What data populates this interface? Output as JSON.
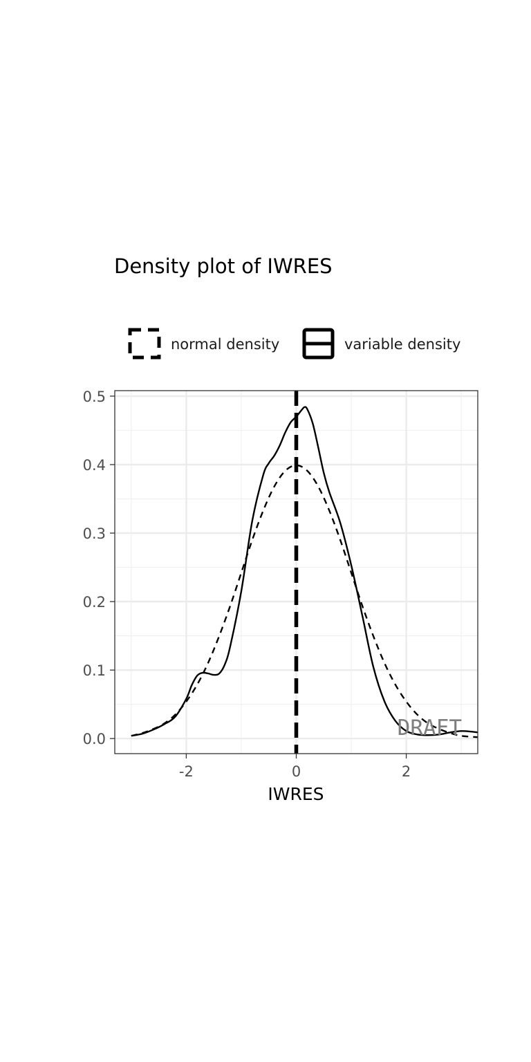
{
  "chart_data": {
    "type": "line",
    "title": "Density plot of IWRES",
    "xlabel": "IWRES",
    "ylabel": "",
    "xlim": [
      -3.3,
      3.3
    ],
    "ylim": [
      -0.022,
      0.508
    ],
    "x_ticks": [
      -2,
      0,
      2
    ],
    "x_tick_labels": [
      "-2",
      "0",
      "2"
    ],
    "y_ticks": [
      0.0,
      0.1,
      0.2,
      0.3,
      0.4,
      0.5
    ],
    "y_tick_labels": [
      "0.0",
      "0.1",
      "0.2",
      "0.3",
      "0.4",
      "0.5"
    ],
    "grid": true,
    "legend_position": "top",
    "legend": [
      {
        "label": "normal density",
        "linetype": "dashed"
      },
      {
        "label": "variable density",
        "linetype": "solid"
      }
    ],
    "reference_line": {
      "x": 0,
      "linetype": "dashed"
    },
    "watermark": "DRAFT",
    "series": [
      {
        "name": "normal density",
        "linetype": "dashed",
        "x": [
          -3.0,
          -2.8,
          -2.6,
          -2.4,
          -2.2,
          -2.0,
          -1.8,
          -1.6,
          -1.4,
          -1.2,
          -1.0,
          -0.8,
          -0.6,
          -0.4,
          -0.2,
          0.0,
          0.2,
          0.4,
          0.6,
          0.8,
          1.0,
          1.2,
          1.4,
          1.6,
          1.8,
          2.0,
          2.2,
          2.4,
          2.6,
          2.8,
          3.0,
          3.3
        ],
        "y": [
          0.004,
          0.008,
          0.014,
          0.022,
          0.035,
          0.054,
          0.079,
          0.111,
          0.15,
          0.194,
          0.242,
          0.29,
          0.333,
          0.368,
          0.391,
          0.399,
          0.391,
          0.368,
          0.333,
          0.29,
          0.242,
          0.194,
          0.15,
          0.111,
          0.079,
          0.054,
          0.035,
          0.022,
          0.014,
          0.008,
          0.004,
          0.002
        ]
      },
      {
        "name": "variable density",
        "linetype": "solid",
        "x": [
          -3.0,
          -2.8,
          -2.6,
          -2.4,
          -2.2,
          -2.0,
          -1.9,
          -1.8,
          -1.7,
          -1.6,
          -1.5,
          -1.4,
          -1.3,
          -1.2,
          -1.0,
          -0.8,
          -0.6,
          -0.5,
          -0.4,
          -0.3,
          -0.2,
          -0.1,
          0.0,
          0.1,
          0.15,
          0.2,
          0.3,
          0.4,
          0.5,
          0.6,
          0.8,
          1.0,
          1.2,
          1.4,
          1.6,
          1.8,
          2.0,
          2.2,
          2.4,
          2.6,
          2.8,
          3.0,
          3.2,
          3.3
        ],
        "y": [
          0.004,
          0.007,
          0.013,
          0.021,
          0.032,
          0.058,
          0.078,
          0.092,
          0.096,
          0.095,
          0.093,
          0.095,
          0.108,
          0.135,
          0.215,
          0.318,
          0.385,
          0.402,
          0.413,
          0.428,
          0.447,
          0.462,
          0.47,
          0.48,
          0.484,
          0.481,
          0.46,
          0.425,
          0.388,
          0.36,
          0.315,
          0.253,
          0.18,
          0.105,
          0.055,
          0.026,
          0.011,
          0.006,
          0.005,
          0.006,
          0.009,
          0.011,
          0.01,
          0.009
        ]
      }
    ]
  }
}
